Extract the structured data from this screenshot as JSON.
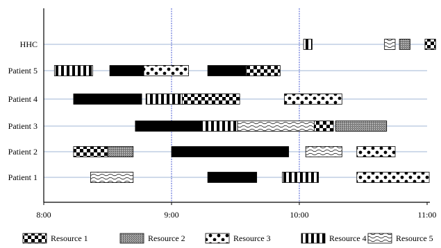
{
  "chart_data": {
    "type": "gantt",
    "title": "",
    "xlabel": "",
    "ylabel": "",
    "x_ticks": [
      "8:00",
      "9:00",
      "10:00",
      "11:00"
    ],
    "xlim": [
      "8:00",
      "11:00"
    ],
    "rows": [
      "Patient 1",
      "Patient 2",
      "Patient 3",
      "Patient 4",
      "Patient 5",
      "HHC"
    ],
    "tasks": [
      {
        "row": "HHC",
        "resource": "Resource 4",
        "start": "10:02",
        "end": "10:06"
      },
      {
        "row": "HHC",
        "resource": "Resource 5",
        "start": "10:40",
        "end": "10:45"
      },
      {
        "row": "HHC",
        "resource": "Resource 2",
        "start": "10:47",
        "end": "10:52"
      },
      {
        "row": "HHC",
        "resource": "Resource 1",
        "start": "10:59",
        "end": "11:04"
      },
      {
        "row": "Patient 5",
        "resource": "Resource 4",
        "start": "8:05",
        "end": "8:23"
      },
      {
        "row": "Patient 5",
        "resource": "Black",
        "start": "8:31",
        "end": "8:47"
      },
      {
        "row": "Patient 5",
        "resource": "Resource 3",
        "start": "8:47",
        "end": "9:08"
      },
      {
        "row": "Patient 5",
        "resource": "Black",
        "start": "9:17",
        "end": "9:35"
      },
      {
        "row": "Patient 5",
        "resource": "Resource 1",
        "start": "9:35",
        "end": "9:51"
      },
      {
        "row": "Patient 4",
        "resource": "Black",
        "start": "8:14",
        "end": "8:46"
      },
      {
        "row": "Patient 4",
        "resource": "Resource 4",
        "start": "8:48",
        "end": "9:05"
      },
      {
        "row": "Patient 4",
        "resource": "Resource 1",
        "start": "9:05",
        "end": "9:32"
      },
      {
        "row": "Patient 4",
        "resource": "Resource 3",
        "start": "9:53",
        "end": "10:20"
      },
      {
        "row": "Patient 3",
        "resource": "Black",
        "start": "8:43",
        "end": "9:14"
      },
      {
        "row": "Patient 3",
        "resource": "Resource 4",
        "start": "9:14",
        "end": "9:31"
      },
      {
        "row": "Patient 3",
        "resource": "Resource 5",
        "start": "9:31",
        "end": "10:07"
      },
      {
        "row": "Patient 3",
        "resource": "Resource 1",
        "start": "10:07",
        "end": "10:16"
      },
      {
        "row": "Patient 3",
        "resource": "Resource 2",
        "start": "10:17",
        "end": "10:41"
      },
      {
        "row": "Patient 2",
        "resource": "Resource 1",
        "start": "8:14",
        "end": "8:30"
      },
      {
        "row": "Patient 2",
        "resource": "Resource 2",
        "start": "8:30",
        "end": "8:42"
      },
      {
        "row": "Patient 2",
        "resource": "Black",
        "start": "9:00",
        "end": "9:55"
      },
      {
        "row": "Patient 2",
        "resource": "Resource 5",
        "start": "10:03",
        "end": "10:20"
      },
      {
        "row": "Patient 2",
        "resource": "Resource 3",
        "start": "10:27",
        "end": "10:45"
      },
      {
        "row": "Patient 1",
        "resource": "Resource 5",
        "start": "8:22",
        "end": "8:42"
      },
      {
        "row": "Patient 1",
        "resource": "Black",
        "start": "9:17",
        "end": "9:40"
      },
      {
        "row": "Patient 1",
        "resource": "Resource 4",
        "start": "9:52",
        "end": "10:09"
      },
      {
        "row": "Patient 1",
        "resource": "Resource 3",
        "start": "10:27",
        "end": "11:01"
      }
    ],
    "reference_lines": [
      "9:00",
      "10:00"
    ],
    "legend": [
      {
        "name": "Resource 1",
        "pattern": "checker"
      },
      {
        "name": "Resource 2",
        "pattern": "gray-dots"
      },
      {
        "name": "Resource 3",
        "pattern": "polka"
      },
      {
        "name": "Resource 4",
        "pattern": "vertical-stripes"
      },
      {
        "name": "Resource 5",
        "pattern": "waves"
      }
    ],
    "legend_placement": "bottom",
    "grid": true
  }
}
